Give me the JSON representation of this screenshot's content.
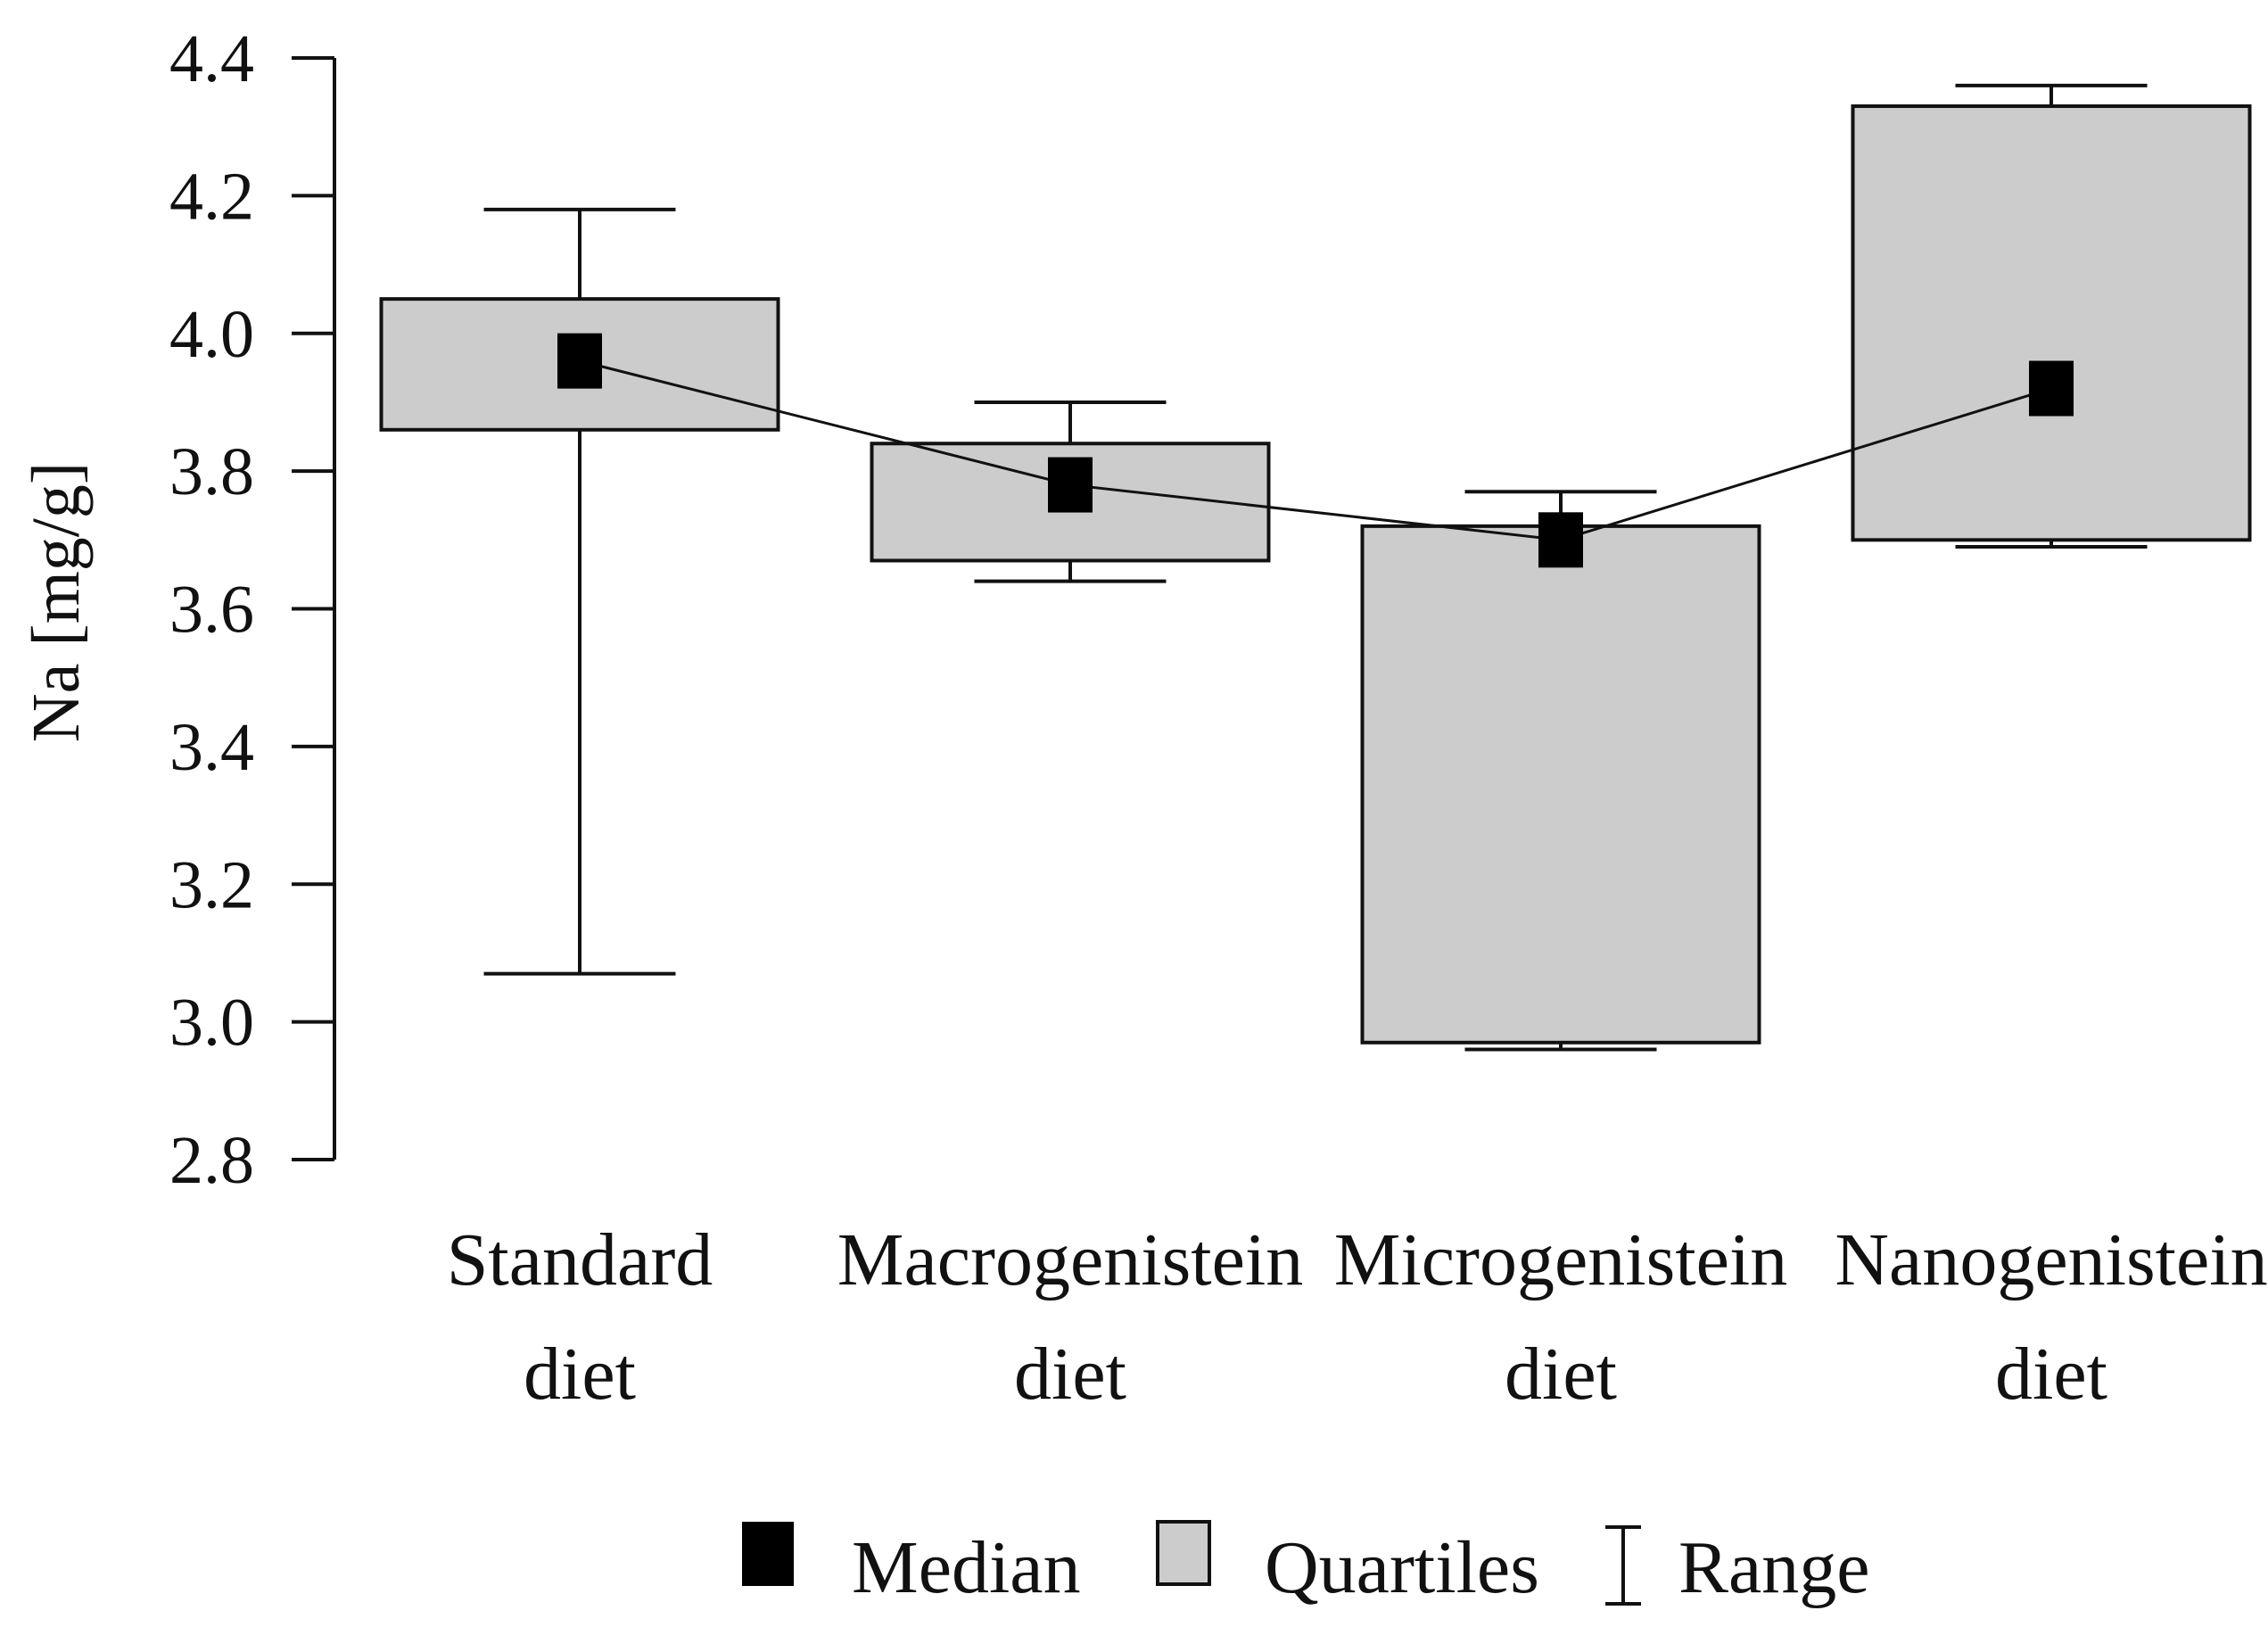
{
  "chart_data": {
    "type": "boxplot",
    "ylabel": "Na [mg/g]",
    "ylim": [
      2.8,
      4.4
    ],
    "yticks": [
      "2.8",
      "3.0",
      "3.2",
      "3.4",
      "3.6",
      "3.8",
      "4.0",
      "4.2",
      "4.4"
    ],
    "grid": false,
    "legend_position": "bottom",
    "categories": [
      [
        "Standard",
        "diet"
      ],
      [
        "Macrogenistein",
        "diet"
      ],
      [
        "Microgenistein",
        "diet"
      ],
      [
        "Nanogenistein",
        "diet"
      ]
    ],
    "series": [
      {
        "min": 3.07,
        "q1": 3.86,
        "median": 3.96,
        "q3": 4.05,
        "max": 4.18
      },
      {
        "min": 3.64,
        "q1": 3.67,
        "median": 3.78,
        "q3": 3.84,
        "max": 3.9
      },
      {
        "min": 2.96,
        "q1": 2.97,
        "median": 3.7,
        "q3": 3.72,
        "max": 3.77
      },
      {
        "min": 3.69,
        "q1": 3.7,
        "median": 3.92,
        "q3": 4.33,
        "max": 4.36
      }
    ],
    "median_line": true,
    "legend": [
      "Median",
      "Quartiles",
      "Range"
    ],
    "colors": {
      "box": "#cccccc",
      "stroke": "#111111",
      "marker": "#000000"
    }
  }
}
